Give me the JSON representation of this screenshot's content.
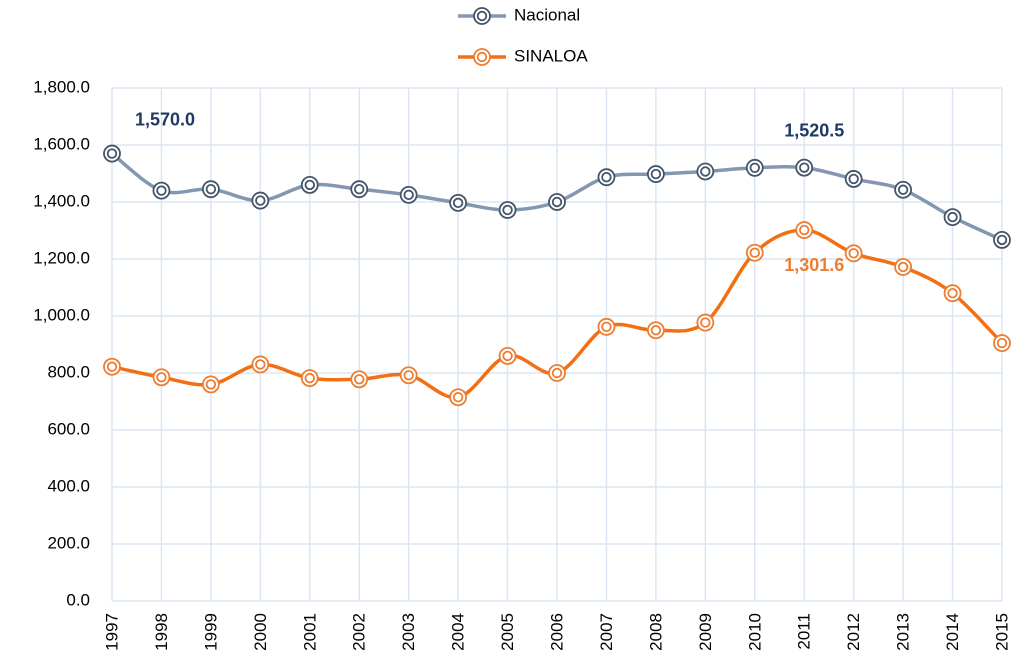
{
  "chart_data": {
    "type": "line",
    "categories": [
      "1997",
      "1998",
      "1999",
      "2000",
      "2001",
      "2002",
      "2003",
      "2004",
      "2005",
      "2006",
      "2007",
      "2008",
      "2009",
      "2010",
      "2011",
      "2012",
      "2013",
      "2014",
      "2015"
    ],
    "series": [
      {
        "name": "Nacional",
        "color": "#8497b0",
        "marker_color": "#44546a",
        "label_color": "#1f3864",
        "values": [
          1570.0,
          1440,
          1445,
          1405,
          1460,
          1445,
          1425,
          1397,
          1372,
          1400,
          1487,
          1498,
          1507,
          1520,
          1520.5,
          1481,
          1443,
          1347,
          1267
        ],
        "value_labels": [
          "1,570.0",
          null,
          null,
          null,
          null,
          null,
          null,
          null,
          null,
          null,
          null,
          null,
          null,
          null,
          "1,520.5",
          null,
          null,
          null,
          null
        ]
      },
      {
        "name": "SINALOA",
        "color": "#f36f13",
        "marker_color": "#ed7d31",
        "label_color": "#ed7d31",
        "values": [
          822,
          785,
          760,
          830,
          782,
          778,
          792,
          715,
          860,
          800,
          962,
          950,
          977,
          1222,
          1301.6,
          1220,
          1172,
          1080,
          905
        ],
        "value_labels": [
          null,
          null,
          null,
          null,
          null,
          null,
          null,
          null,
          null,
          null,
          null,
          null,
          null,
          null,
          "1,301.6",
          null,
          null,
          null,
          null
        ]
      }
    ],
    "ylim": [
      0,
      1800
    ],
    "yticks": [
      {
        "value": 0,
        "label": "0.0"
      },
      {
        "value": 200,
        "label": "200.0"
      },
      {
        "value": 400,
        "label": "400.0"
      },
      {
        "value": 600,
        "label": "600.0"
      },
      {
        "value": 800,
        "label": "800.0"
      },
      {
        "value": 1000,
        "label": "1,000.0"
      },
      {
        "value": 1200,
        "label": "1,200.0"
      },
      {
        "value": 1400,
        "label": "1,400.0"
      },
      {
        "value": 1600,
        "label": "1,600.0"
      },
      {
        "value": 1800,
        "label": "1,800.0"
      }
    ],
    "grid": true,
    "legend": "top",
    "smooth": true
  }
}
